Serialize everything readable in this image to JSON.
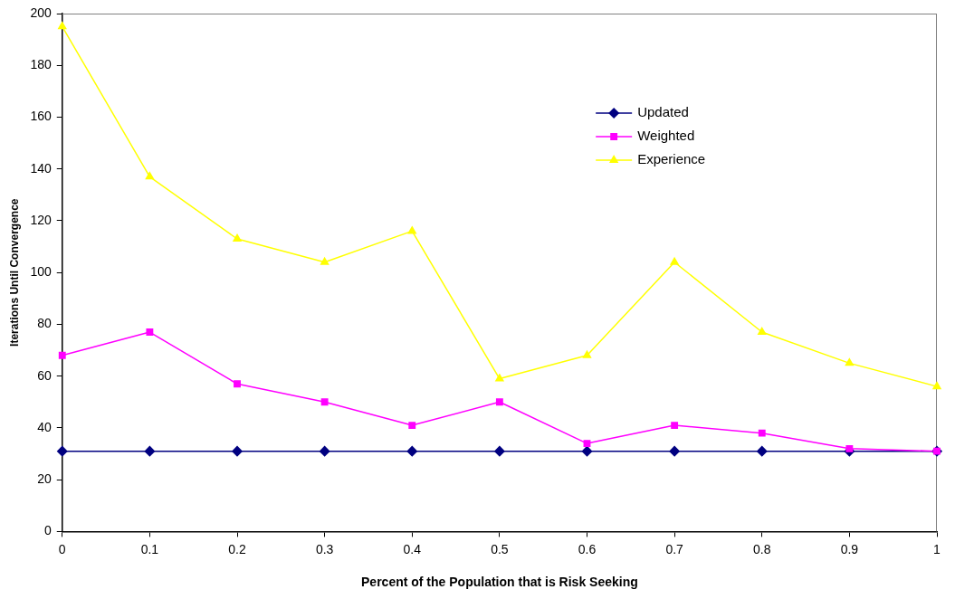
{
  "chart_data": {
    "type": "line",
    "xlabel": "Percent of the Population that is Risk Seeking",
    "ylabel": "Iterations Until Convergence",
    "x": [
      0,
      0.1,
      0.2,
      0.3,
      0.4,
      0.5,
      0.6,
      0.7,
      0.8,
      0.9,
      1
    ],
    "xlim": [
      0,
      1
    ],
    "xticks": [
      0,
      0.1,
      0.2,
      0.3,
      0.4,
      0.5,
      0.6,
      0.7,
      0.8,
      0.9,
      1
    ],
    "ylim": [
      0,
      200
    ],
    "yticks": [
      0,
      20,
      40,
      60,
      80,
      100,
      120,
      140,
      160,
      180,
      200
    ],
    "grid": false,
    "legend": "top right",
    "series": [
      {
        "name": "Updated",
        "color": "#000080",
        "marker": "diamond",
        "values": [
          31,
          31,
          31,
          31,
          31,
          31,
          31,
          31,
          31,
          31,
          31
        ]
      },
      {
        "name": "Weighted",
        "color": "#ff00ff",
        "marker": "square",
        "values": [
          68,
          77,
          57,
          50,
          41,
          50,
          34,
          41,
          38,
          32,
          31
        ]
      },
      {
        "name": "Experience",
        "color": "#ffff00",
        "marker": "triangle",
        "values": [
          195,
          137,
          113,
          104,
          116,
          59,
          68,
          104,
          77,
          65,
          56
        ]
      }
    ]
  }
}
